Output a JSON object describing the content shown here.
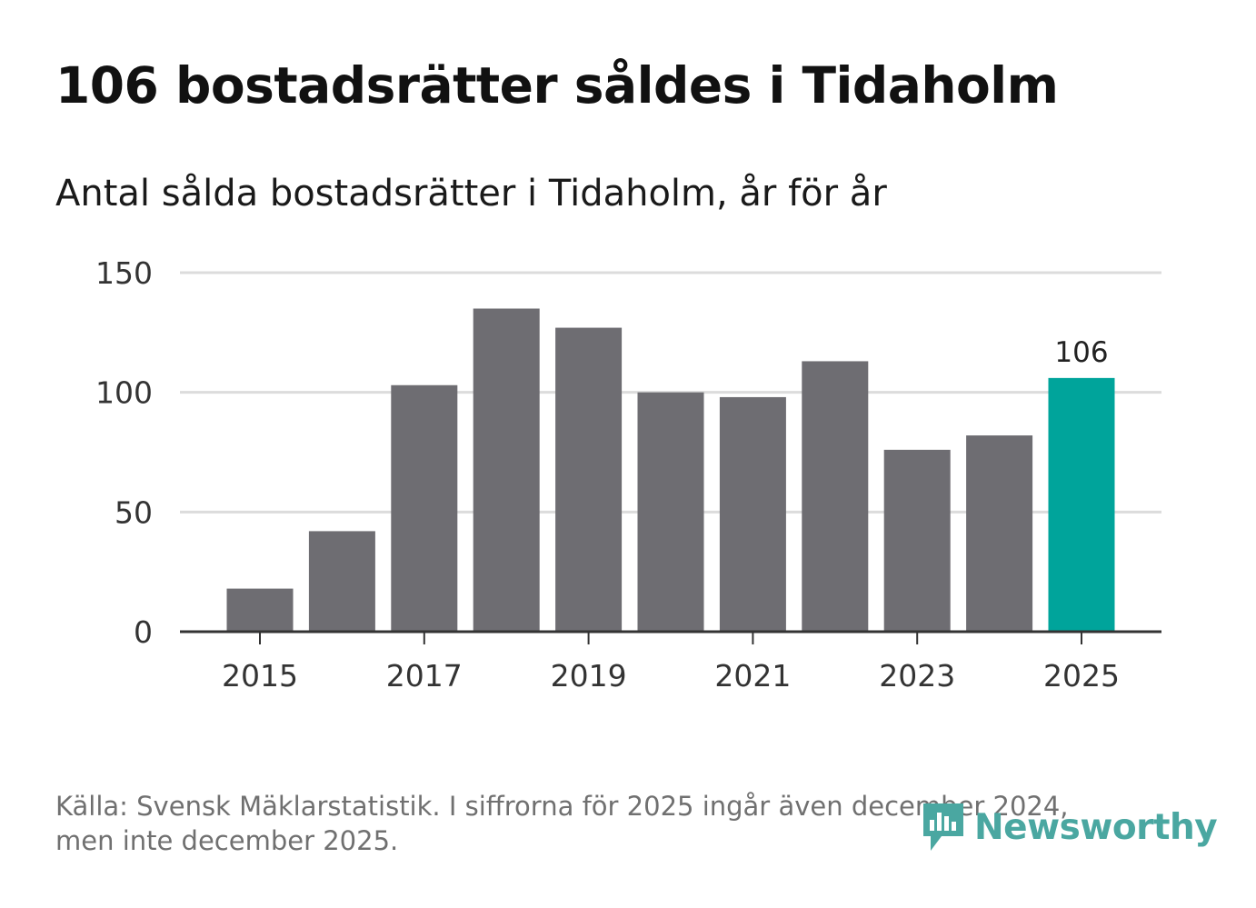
{
  "title": "106 bostadsrätter såldes i Tidaholm",
  "subtitle": "Antal sålda bostadsrätter i Tidaholm, år för år",
  "footer": {
    "line1": "Källa: Svensk Mäklarstatistik. I siffrorna för 2025 ingår även december 2024,",
    "line2": "men inte december 2025."
  },
  "logo": {
    "text": "Newsworthy",
    "icon": "newsworthy-logo-icon"
  },
  "colors": {
    "bar": "#6e6d72",
    "highlight": "#00a49b",
    "grid": "#dcdcdc",
    "axis": "#333333",
    "logo": "#4aa7a1"
  },
  "chart_data": {
    "type": "bar",
    "title": "106 bostadsrätter såldes i Tidaholm",
    "subtitle": "Antal sålda bostadsrätter i Tidaholm, år för år",
    "categories": [
      2015,
      2016,
      2017,
      2018,
      2019,
      2020,
      2021,
      2022,
      2023,
      2024,
      2025
    ],
    "values": [
      18,
      42,
      103,
      135,
      127,
      100,
      98,
      113,
      76,
      82,
      106
    ],
    "highlight_category": 2025,
    "highlight_label": "106",
    "ylim": [
      0,
      150
    ],
    "yticks": [
      "0",
      "50",
      "100",
      "150"
    ],
    "xticks": [
      "2015",
      "2017",
      "2019",
      "2021",
      "2023",
      "2025"
    ],
    "xlabel": "",
    "ylabel": "",
    "grid": true,
    "legend": "none"
  }
}
